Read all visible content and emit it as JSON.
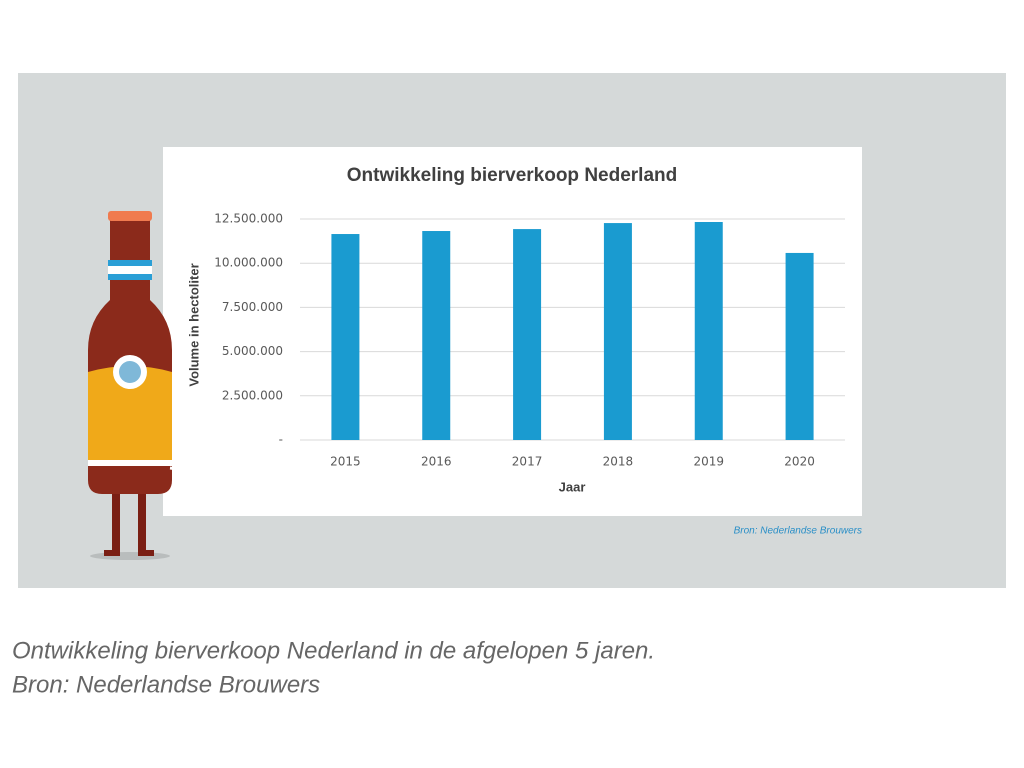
{
  "chart_data": {
    "type": "bar",
    "title": "Ontwikkeling bierverkoop Nederland",
    "x_label": "Jaar",
    "y_label": "Volume in hectoliter",
    "categories": [
      "2015",
      "2016",
      "2017",
      "2018",
      "2019",
      "2020"
    ],
    "values": [
      11650000,
      11820000,
      11930000,
      12270000,
      12330000,
      10580000
    ],
    "color": "#1a9bd0",
    "ylim": [
      0,
      12500000
    ],
    "yticks": [
      {
        "value": 0,
        "label": "-"
      },
      {
        "value": 2500000,
        "label": "2.500.000"
      },
      {
        "value": 5000000,
        "label": "5.000.000"
      },
      {
        "value": 7500000,
        "label": "7.500.000"
      },
      {
        "value": 10000000,
        "label": "10.000.000"
      },
      {
        "value": 12500000,
        "label": "12.500.000"
      }
    ],
    "grid": true,
    "source": "Bron: Nederlandse Brouwers"
  },
  "caption": {
    "lines": [
      "Ontwikkeling bierverkoop Nederland in de afgelopen 5 jaren.",
      "Bron: Nederlandse Brouwers"
    ]
  }
}
